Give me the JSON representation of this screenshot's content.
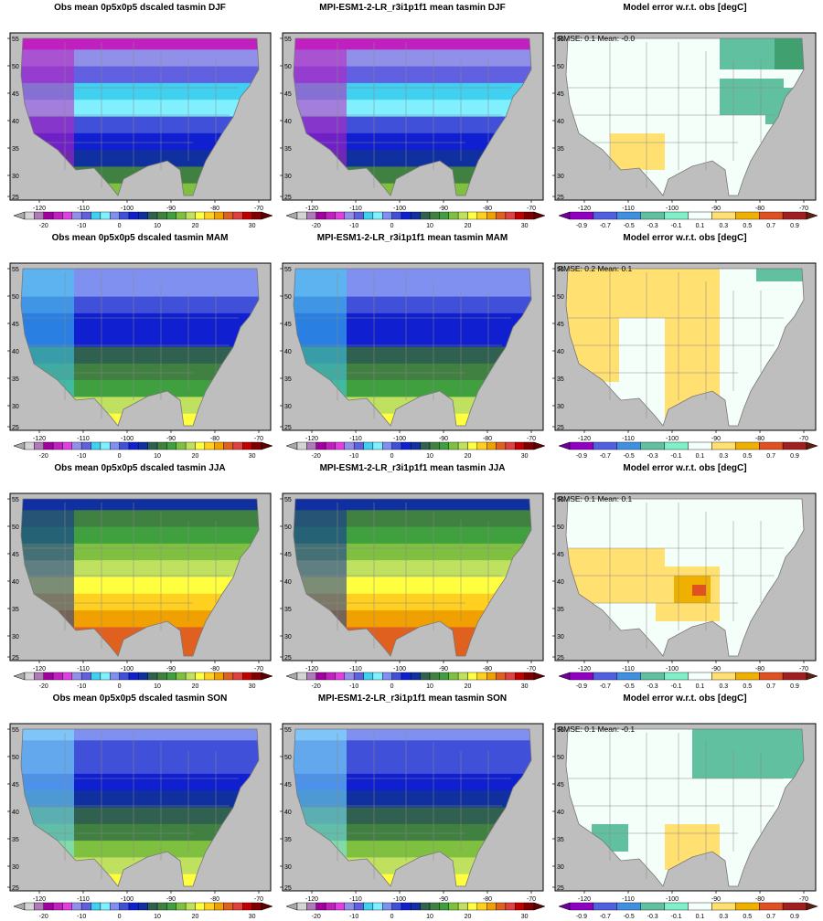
{
  "figure": {
    "rows": [
      {
        "season": "DJF",
        "obs_title": "Obs mean 0p5x0p5 dscaled tasmin DJF",
        "model_title": "MPI-ESM1-2-LR_r3i1p1f1 mean tasmin DJF",
        "err_title": "Model error w.r.t. obs [degC]",
        "rmse_text": "RMSE: 0.1  Mean: -0.0"
      },
      {
        "season": "MAM",
        "obs_title": "Obs mean 0p5x0p5 dscaled tasmin MAM",
        "model_title": "MPI-ESM1-2-LR_r3i1p1f1 mean tasmin MAM",
        "err_title": "Model error w.r.t. obs [degC]",
        "rmse_text": "RMSE: 0.2  Mean: 0.1"
      },
      {
        "season": "JJA",
        "obs_title": "Obs mean 0p5x0p5 dscaled tasmin JJA",
        "model_title": "MPI-ESM1-2-LR_r3i1p1f1 mean tasmin JJA",
        "err_title": "Model error w.r.t. obs [degC]",
        "rmse_text": "RMSE: 0.1  Mean: 0.1"
      },
      {
        "season": "SON",
        "obs_title": "Obs mean 0p5x0p5 dscaled tasmin SON",
        "model_title": "MPI-ESM1-2-LR_r3i1p1f1 mean tasmin SON",
        "err_title": "Model error w.r.t. obs [degC]",
        "rmse_text": "RMSE: 0.1  Mean: -0.1"
      }
    ],
    "map_axes": {
      "lon_labels": [
        "-120",
        "-110",
        "-100",
        "-90",
        "-80",
        "-70"
      ],
      "lat_labels": [
        "55",
        "50",
        "45",
        "40",
        "35",
        "30",
        "25"
      ]
    },
    "temp_colorbar": {
      "labels": [
        "-20",
        "-10",
        "0",
        "10",
        "20",
        "30"
      ],
      "colors": [
        "#d4d4d4",
        "#b07ab8",
        "#a000a0",
        "#c020c0",
        "#e040e0",
        "#9090e8",
        "#6060e0",
        "#40d0f0",
        "#80f0ff",
        "#8090f0",
        "#4050d8",
        "#1020d0",
        "#1030a0",
        "#306050",
        "#408040",
        "#40a040",
        "#80c040",
        "#c0e060",
        "#ffff40",
        "#ffd020",
        "#f0a000",
        "#e06020",
        "#e04040",
        "#c00000",
        "#800000"
      ],
      "under_color": "#aaaaaa",
      "over_color": "#600000"
    },
    "error_colorbar": {
      "labels": [
        "-0.9",
        "-0.7",
        "-0.5",
        "-0.3",
        "-0.1",
        "0.1",
        "0.3",
        "0.5",
        "0.7",
        "0.9"
      ],
      "colors": [
        "#9000c0",
        "#5060e0",
        "#4090e0",
        "#60c0a0",
        "#80f0c8",
        "#f4fffa",
        "#ffe070",
        "#f0b000",
        "#e05020",
        "#a02020"
      ],
      "under_color": "#7000a0",
      "over_color": "#602010"
    },
    "ocean_color": "#bebebe"
  }
}
